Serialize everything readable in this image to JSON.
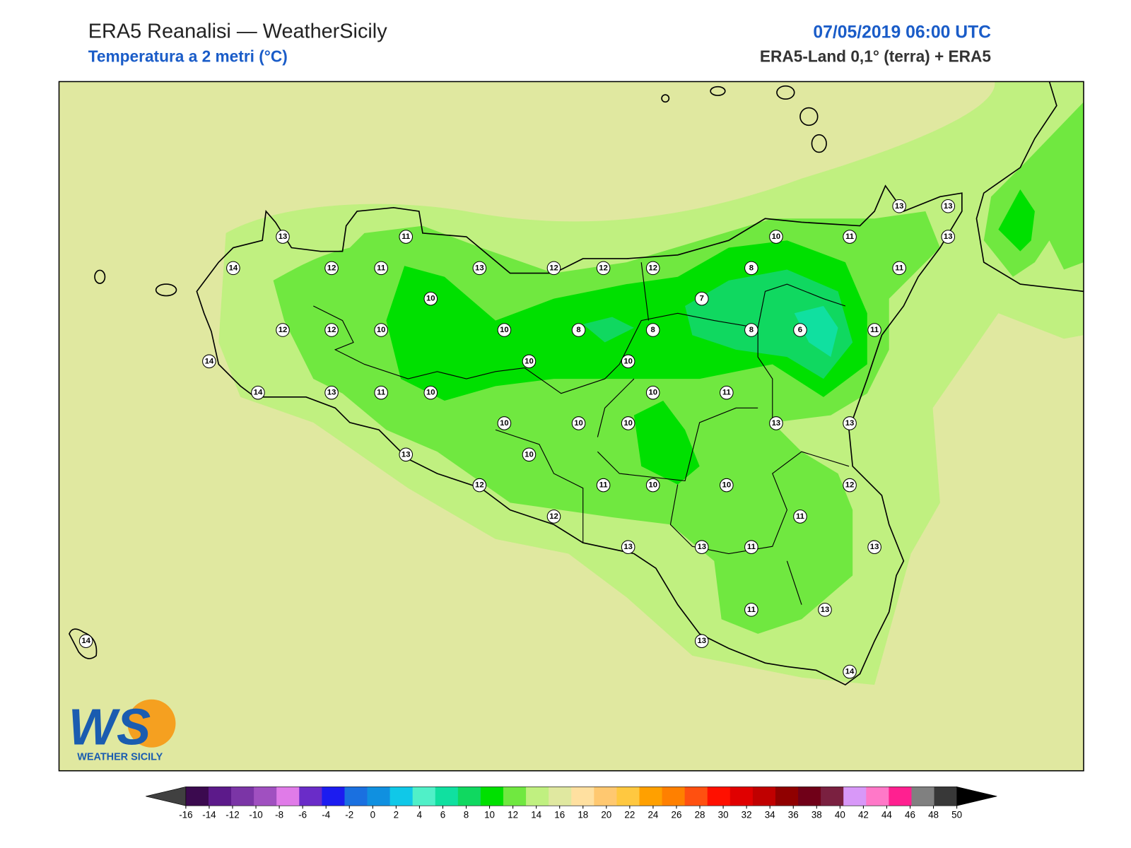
{
  "header": {
    "title": "ERA5 Reanalisi — WeatherSicily",
    "subtitle": "Temperatura a 2 metri (°C)",
    "datetime": "07/05/2019 06:00 UTC",
    "source": "ERA5-Land 0,1° (terra) + ERA5"
  },
  "logo": {
    "mark": "WS",
    "name": "WEATHER SICILY"
  },
  "stations": [
    13,
    11,
    14,
    12,
    11,
    13,
    12,
    12,
    12,
    10,
    11,
    13,
    13,
    13,
    8,
    11,
    10,
    7,
    12,
    12,
    10,
    10,
    8,
    8,
    8,
    6,
    11,
    14,
    10,
    10,
    14,
    13,
    11,
    10,
    10,
    11,
    10,
    10,
    10,
    13,
    13,
    13,
    10,
    12,
    11,
    10,
    10,
    12,
    12,
    11,
    13,
    13,
    11,
    13,
    11,
    13,
    13,
    14,
    14
  ],
  "colorbar": {
    "ticks": [
      -16,
      -14,
      -12,
      -10,
      -8,
      -6,
      -4,
      -2,
      0,
      2,
      4,
      6,
      8,
      10,
      12,
      14,
      16,
      18,
      20,
      22,
      24,
      26,
      28,
      30,
      32,
      34,
      36,
      38,
      40,
      42,
      44,
      46,
      48,
      50
    ],
    "colors": [
      "#3b0a4f",
      "#5c1a8a",
      "#7b35a6",
      "#a050c0",
      "#e07be8",
      "#6a2cc8",
      "#1c1cf0",
      "#1a70e0",
      "#1090e0",
      "#10c8e8",
      "#50f0c8",
      "#10e0a0",
      "#10d860",
      "#00e000",
      "#70e840",
      "#c0f080",
      "#e0e8a0",
      "#ffe0a0",
      "#ffc870",
      "#ffc840",
      "#ffa000",
      "#ff8000",
      "#ff5010",
      "#ff1000",
      "#e00000",
      "#c00000",
      "#900000",
      "#700018",
      "#7a2040",
      "#d898f8",
      "#ff78c8",
      "#ff2090",
      "#808080",
      "#383838"
    ],
    "under": "#404040",
    "over": "#000000"
  }
}
